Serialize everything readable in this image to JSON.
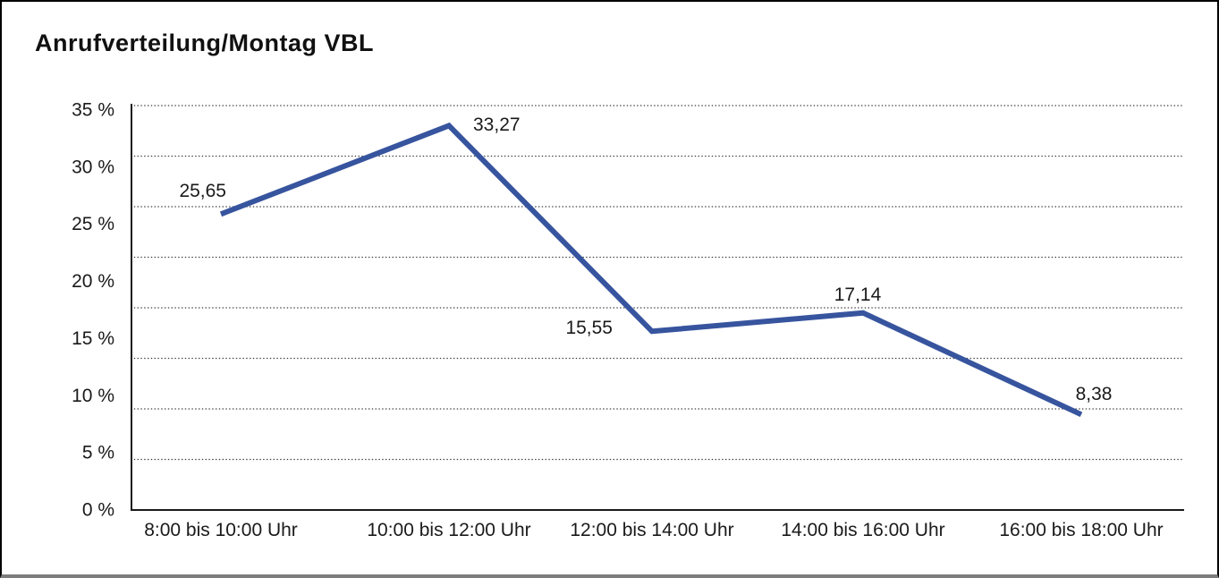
{
  "chart": {
    "title": "Anrufverteilung/Montag VBL"
  },
  "chart_data": {
    "type": "line",
    "title": "Anrufverteilung/Montag VBL",
    "categories": [
      "8:00 bis 10:00 Uhr",
      "10:00 bis 12:00 Uhr",
      "12:00 bis 14:00 Uhr",
      "14:00 bis 16:00 Uhr",
      "16:00 bis 18:00 Uhr"
    ],
    "series": [
      {
        "name": "Anrufverteilung Montag VBL",
        "values": [
          25.65,
          33.27,
          15.55,
          17.14,
          8.38
        ],
        "value_labels": [
          "25,65",
          "33,27",
          "15,55",
          "17,14",
          "8,38"
        ]
      }
    ],
    "xlabel": "",
    "ylabel": "",
    "ylim": [
      0,
      35
    ],
    "ytick_step": 5,
    "ytick_labels": [
      "35 %",
      "30 %",
      "25 %",
      "20 %",
      "15 %",
      "10 %",
      "5 %",
      "0 %"
    ],
    "grid": "horizontal-dotted",
    "legend_position": "none",
    "unit": "percent",
    "decimal_separator": "comma"
  },
  "colors": {
    "line": "#37549E",
    "text": "#1a1a1a",
    "grid": "#3c3c3c",
    "axis": "#1a1a1a",
    "background": "#ffffff",
    "outer_border": "#000000",
    "outer_border_bottom": "#7d7d7d"
  }
}
